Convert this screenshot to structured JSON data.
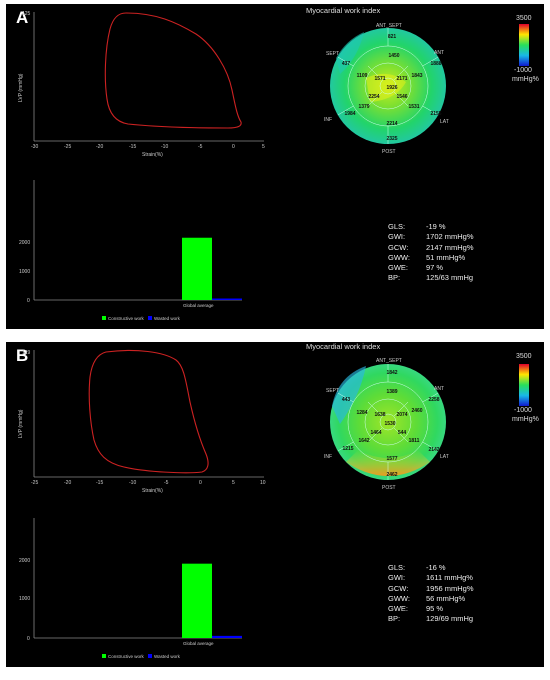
{
  "panels": [
    {
      "label": "A",
      "title": "Myocardial work index",
      "pv_loop": {
        "y_axis_label": "LVP (mmHg)",
        "x_axis_label": "Strain(%)",
        "y_max_label": "125",
        "x_ticks": [
          "-30",
          "-25",
          "-20",
          "-15",
          "-10",
          "-5",
          "0",
          "5"
        ]
      },
      "bullseye": {
        "wall_labels": {
          "ant_sept": "ANT_SEPT",
          "ant": "ANT",
          "lat": "LAT",
          "post": "POST",
          "inf": "INF",
          "sept": "SEPT"
        },
        "segments": {
          "basal": [
            "821",
            "1888",
            "2155",
            "2325",
            "1984",
            "437"
          ],
          "mid": [
            "1450",
            "1843",
            "1531",
            "2214",
            "1379",
            "1109"
          ],
          "apical": [
            "1571",
            "2171",
            "1546",
            "2254"
          ],
          "apex": "1926"
        },
        "colorbar": {
          "max_label": "3500",
          "min_label": "-1000",
          "unit": "mmHg%"
        }
      },
      "bar_chart": {
        "y_ticks": [
          "0",
          "1000",
          "2000"
        ],
        "x_label": "Global average",
        "legend": [
          "Constructive work",
          "Wasted work"
        ]
      },
      "stats": [
        {
          "key": "GLS:",
          "value": "-19 %"
        },
        {
          "key": "GWI:",
          "value": "1702 mmHg%"
        },
        {
          "key": "GCW:",
          "value": "2147 mmHg%"
        },
        {
          "key": "GWW:",
          "value": "51 mmHg%"
        },
        {
          "key": "GWE:",
          "value": "97 %"
        },
        {
          "key": "BP:",
          "value": "125/63 mmHg"
        }
      ]
    },
    {
      "label": "B",
      "title": "Myocardial work index",
      "pv_loop": {
        "y_axis_label": "LVP (mmHg)",
        "x_axis_label": "Strain(%)",
        "y_max_label": "129",
        "x_ticks": [
          "-25",
          "-20",
          "-15",
          "-10",
          "-5",
          "0",
          "5",
          "10"
        ]
      },
      "bullseye": {
        "wall_labels": {
          "ant_sept": "ANT_SEPT",
          "ant": "ANT",
          "lat": "LAT",
          "post": "POST",
          "inf": "INF",
          "sept": "SEPT"
        },
        "segments": {
          "basal": [
            "1842",
            "2258",
            "2142",
            "2462",
            "1215",
            "443"
          ],
          "mid": [
            "1389",
            "2460",
            "1811",
            "1577",
            "1642",
            "1284"
          ],
          "apical": [
            "1638",
            "2074",
            "544",
            "1464"
          ],
          "apex": "1530"
        },
        "colorbar": {
          "max_label": "3500",
          "min_label": "-1000",
          "unit": "mmHg%"
        }
      },
      "bar_chart": {
        "y_ticks": [
          "0",
          "1000",
          "2000"
        ],
        "x_label": "Global average",
        "legend": [
          "Constructive work",
          "Wasted work"
        ]
      },
      "stats": [
        {
          "key": "GLS:",
          "value": "-16 %"
        },
        {
          "key": "GWI:",
          "value": "1611 mmHg%"
        },
        {
          "key": "GCW:",
          "value": "1956 mmHg%"
        },
        {
          "key": "GWW:",
          "value": "56 mmHg%"
        },
        {
          "key": "GWE:",
          "value": "95 %"
        },
        {
          "key": "BP:",
          "value": "129/69 mmHg"
        }
      ]
    }
  ],
  "chart_data": [
    {
      "type": "bar",
      "categories": [
        "Global average"
      ],
      "series": [
        {
          "name": "Constructive work",
          "values": [
            2147
          ]
        },
        {
          "name": "Wasted work",
          "values": [
            51
          ]
        }
      ],
      "ylim": [
        0,
        3000
      ],
      "color_constructive": "#00ff00",
      "color_wasted": "#0000ff"
    },
    {
      "type": "bar",
      "categories": [
        "Global average"
      ],
      "series": [
        {
          "name": "Constructive work",
          "values": [
            1956
          ]
        },
        {
          "name": "Wasted work",
          "values": [
            56
          ]
        }
      ],
      "ylim": [
        0,
        3000
      ],
      "color_constructive": "#00ff00",
      "color_wasted": "#0000ff"
    }
  ],
  "colors": {
    "loop": "#cc2222",
    "constructive": "#00ff00",
    "wasted": "#0000ff",
    "bullseye_base": "#22d46a"
  }
}
